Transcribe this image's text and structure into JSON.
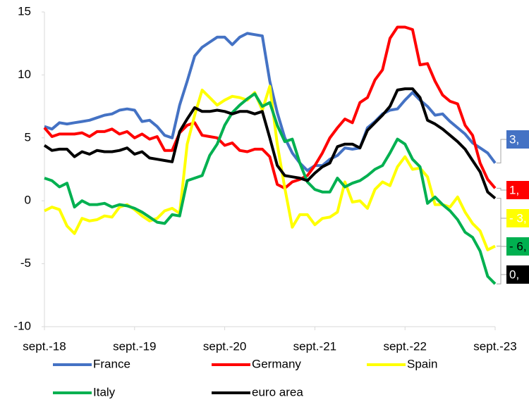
{
  "chart_data": {
    "type": "line",
    "categories": [
      "sept.-18",
      null,
      null,
      null,
      null,
      null,
      null,
      null,
      null,
      null,
      null,
      null,
      "sept.-19",
      null,
      null,
      null,
      null,
      null,
      null,
      null,
      null,
      null,
      null,
      null,
      "sept.-20",
      null,
      null,
      null,
      null,
      null,
      null,
      null,
      null,
      null,
      null,
      null,
      "sept.-21",
      null,
      null,
      null,
      null,
      null,
      null,
      null,
      null,
      null,
      null,
      null,
      "sept.-22",
      null,
      null,
      null,
      null,
      null,
      null,
      null,
      null,
      null,
      null,
      null,
      "sept.-23"
    ],
    "ylim": [
      -10,
      15
    ],
    "yticks": [
      -10,
      -5,
      0,
      5,
      10,
      15
    ],
    "series": [
      {
        "name": "France",
        "color": "#4472c4",
        "values": [
          5.9,
          5.7,
          6.2,
          6.1,
          6.2,
          6.3,
          6.4,
          6.6,
          6.8,
          6.9,
          7.2,
          7.3,
          7.2,
          6.3,
          6.4,
          5.9,
          5.2,
          5.0,
          7.6,
          9.5,
          11.5,
          12.2,
          12.6,
          13.0,
          13.0,
          12.4,
          13.0,
          13.3,
          13.2,
          13.1,
          9.5,
          7.0,
          5.0,
          3.8,
          3.0,
          2.4,
          2.8,
          2.8,
          3.3,
          3.6,
          4.2,
          4.1,
          4.2,
          5.8,
          6.3,
          6.9,
          7.2,
          7.3,
          8.0,
          8.6,
          8.0,
          7.5,
          6.8,
          6.9,
          6.3,
          5.8,
          5.3,
          4.6,
          4.2,
          3.8,
          3.0
        ],
        "end_label": "3,"
      },
      {
        "name": "Germany",
        "color": "#ff0000",
        "values": [
          5.8,
          5.1,
          5.3,
          5.3,
          5.3,
          5.4,
          5.1,
          5.5,
          5.5,
          5.7,
          5.3,
          5.5,
          5.0,
          5.3,
          4.9,
          5.1,
          4.0,
          4.0,
          5.4,
          6.0,
          6.2,
          5.2,
          5.1,
          5.0,
          4.4,
          4.6,
          4.0,
          3.9,
          4.1,
          4.1,
          3.5,
          1.3,
          1.0,
          1.5,
          1.7,
          2.0,
          2.8,
          3.8,
          5.0,
          5.8,
          6.5,
          6.2,
          7.8,
          8.2,
          9.6,
          10.4,
          12.9,
          13.8,
          13.8,
          13.6,
          10.8,
          10.9,
          9.5,
          8.4,
          7.9,
          7.7,
          6.0,
          5.2,
          3.0,
          1.7,
          1.0
        ],
        "end_label": "1,"
      },
      {
        "name": "Spain",
        "color": "#ffff00",
        "values": [
          -0.8,
          -0.5,
          -0.7,
          -2.0,
          -2.6,
          -1.4,
          -1.6,
          -1.5,
          -1.2,
          -1.3,
          -0.5,
          -0.3,
          -0.7,
          -1.2,
          -1.6,
          -1.4,
          -0.8,
          -0.6,
          -1.0,
          4.5,
          6.8,
          8.8,
          8.2,
          7.6,
          8.0,
          8.3,
          8.2,
          8.0,
          8.6,
          7.2,
          9.1,
          4.5,
          1.0,
          -2.1,
          -1.1,
          -1.1,
          -1.9,
          -1.4,
          -1.3,
          -0.9,
          1.5,
          -0.1,
          0.0,
          -0.6,
          0.9,
          1.5,
          1.2,
          2.7,
          3.5,
          2.5,
          2.6,
          1.9,
          -0.3,
          -0.3,
          -0.5,
          0.3,
          -0.9,
          -1.8,
          -2.4,
          -3.9,
          -3.6
        ],
        "end_label": "- 3,"
      },
      {
        "name": "Italy",
        "color": "#00b050",
        "values": [
          1.8,
          1.6,
          1.1,
          1.4,
          -0.5,
          0.0,
          -0.3,
          -0.3,
          -0.2,
          -0.5,
          -0.3,
          -0.4,
          -0.6,
          -0.9,
          -1.3,
          -1.7,
          -1.8,
          -1.1,
          -1.2,
          1.6,
          1.8,
          2.0,
          3.6,
          4.5,
          6.0,
          7.0,
          7.6,
          8.1,
          8.5,
          7.5,
          7.8,
          6.0,
          4.7,
          4.9,
          3.0,
          1.5,
          0.9,
          0.7,
          0.7,
          1.8,
          1.1,
          1.4,
          1.6,
          2.0,
          2.5,
          2.8,
          3.8,
          4.9,
          4.5,
          3.3,
          2.7,
          -0.2,
          0.3,
          -0.3,
          -0.8,
          -1.5,
          -2.5,
          -2.9,
          -4.0,
          -6.0,
          -6.6
        ],
        "end_label": "- 6,"
      },
      {
        "name": "euro area",
        "color": "#000000",
        "values": [
          4.4,
          4.0,
          4.1,
          4.1,
          3.5,
          3.9,
          3.7,
          4.0,
          3.9,
          3.9,
          4.0,
          4.2,
          3.7,
          3.9,
          3.4,
          3.3,
          3.2,
          3.1,
          5.5,
          6.5,
          7.4,
          7.1,
          7.1,
          7.2,
          7.1,
          6.9,
          7.1,
          7.1,
          6.9,
          7.1,
          5.0,
          2.8,
          2.0,
          1.9,
          1.8,
          1.6,
          2.2,
          2.7,
          3.0,
          4.3,
          4.5,
          4.5,
          4.2,
          5.6,
          6.2,
          6.8,
          7.5,
          8.8,
          8.9,
          8.9,
          8.2,
          6.4,
          6.1,
          5.7,
          5.2,
          4.7,
          4.1,
          3.2,
          2.3,
          0.7,
          0.2
        ],
        "end_label": "0,"
      }
    ]
  }
}
